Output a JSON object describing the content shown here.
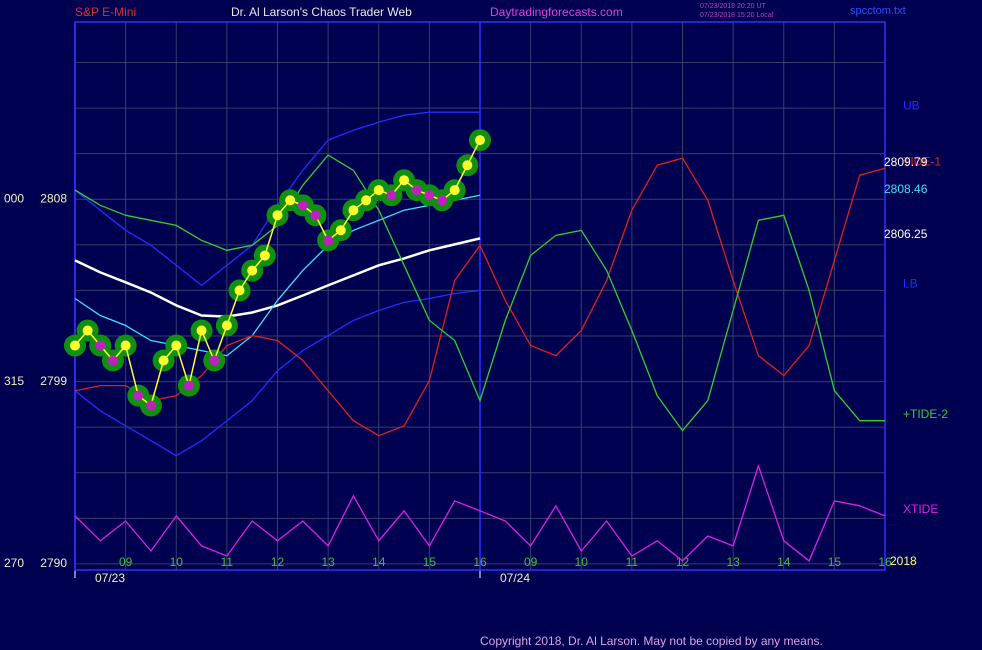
{
  "header": {
    "symbol": "S&P E-Mini",
    "title": "Dr. Al Larson's Chaos Trader Web",
    "site": "Daytradingforecasts.com",
    "stamp_ut": "07/23/2018 20:20 UT",
    "stamp_local": "07/23/2018 15:20 Local",
    "file": "spcctom.txt"
  },
  "footer": "Copyright 2018, Dr. Al Larson. May not be copied by any means.",
  "chart_data": {
    "type": "line",
    "ylim": [
      2789.7,
      2816.75
    ],
    "yticks": [
      2790,
      2799,
      2808
    ],
    "left_scale_labels": [
      "270",
      "315",
      "000"
    ],
    "ygrid": [
      2790,
      2792.25,
      2794.5,
      2796.75,
      2799,
      2801.25,
      2803.5,
      2805.75,
      2808,
      2810.25,
      2812.5,
      2814.75
    ],
    "xlim": [
      0,
      16
    ],
    "xticks": [
      {
        "value": 1,
        "label": "09"
      },
      {
        "value": 2,
        "label": "10"
      },
      {
        "value": 3,
        "label": "11"
      },
      {
        "value": 4,
        "label": "12"
      },
      {
        "value": 5,
        "label": "13"
      },
      {
        "value": 6,
        "label": "14"
      },
      {
        "value": 7,
        "label": "15"
      },
      {
        "value": 8,
        "label": "16"
      },
      {
        "value": 9,
        "label": "09"
      },
      {
        "value": 10,
        "label": "10"
      },
      {
        "value": 11,
        "label": "11"
      },
      {
        "value": 12,
        "label": "12"
      },
      {
        "value": 13,
        "label": "13"
      },
      {
        "value": 14,
        "label": "14"
      },
      {
        "value": 15,
        "label": "15"
      },
      {
        "value": 16,
        "label": "16"
      }
    ],
    "dates": [
      {
        "value": 0,
        "label": "07/23"
      },
      {
        "value": 8,
        "label": "07/24"
      }
    ],
    "year": "2018",
    "grid": true,
    "last_values": [
      {
        "value": 2809.79,
        "color": "#ffffff"
      },
      {
        "value": 2808.46,
        "color": "#40e0ff"
      },
      {
        "value": 2806.25,
        "color": "#ffffff"
      }
    ],
    "series": [
      {
        "name": "UB",
        "color": "#2030ff",
        "x": [
          0,
          0.5,
          1,
          1.5,
          2,
          2.5,
          3,
          3.5,
          4,
          4.5,
          5,
          5.5,
          6,
          6.5,
          7,
          7.5,
          8
        ],
        "values": [
          2808.45,
          2807.46,
          2806.47,
          2805.73,
          2804.74,
          2803.75,
          2804.74,
          2805.73,
          2807.7,
          2809.43,
          2810.92,
          2811.41,
          2811.81,
          2812.15,
          2812.3,
          2812.3,
          2812.3
        ]
      },
      {
        "name": "LB",
        "color": "#2030ff",
        "x": [
          0,
          0.5,
          1,
          1.5,
          2,
          2.5,
          3,
          3.5,
          4,
          4.5,
          5,
          5.5,
          6,
          6.5,
          7,
          7.5,
          8
        ],
        "values": [
          2798.55,
          2797.56,
          2796.82,
          2796.08,
          2795.34,
          2796.08,
          2797.07,
          2798.06,
          2799.54,
          2800.53,
          2801.27,
          2802.02,
          2802.51,
          2802.91,
          2803.1,
          2803.35,
          2803.5
        ]
      },
      {
        "color": "#ffffff",
        "x": [
          0,
          0.5,
          1,
          1.5,
          2,
          2.5,
          3,
          3.5,
          4,
          4.5,
          5,
          5.5,
          6,
          6.5,
          7,
          7.5,
          8
        ],
        "values": [
          2804.98,
          2804.39,
          2803.9,
          2803.4,
          2802.76,
          2802.26,
          2802.21,
          2802.41,
          2802.76,
          2803.25,
          2803.75,
          2804.24,
          2804.74,
          2805.08,
          2805.48,
          2805.77,
          2806.07
        ]
      },
      {
        "color": "#40e0ff",
        "x": [
          0,
          0.5,
          1,
          1.5,
          2,
          2.5,
          3,
          3.5,
          4,
          4.5,
          5,
          5.5,
          6,
          6.5,
          7,
          7.5,
          8
        ],
        "values": [
          2803.1,
          2802.26,
          2801.77,
          2801.03,
          2800.78,
          2800.53,
          2800.28,
          2801.27,
          2803.01,
          2804.49,
          2805.73,
          2806.47,
          2806.96,
          2807.46,
          2807.7,
          2807.95,
          2808.2
        ]
      },
      {
        "name": "TIDE-1",
        "color": "#e02020",
        "x": [
          0,
          0.5,
          1,
          1.5,
          2,
          2.5,
          3,
          3.5,
          4,
          4.5,
          5,
          5.5,
          6,
          6.5,
          7,
          7.5,
          8,
          8.5,
          9,
          9.5,
          10,
          10.5,
          11,
          11.5,
          12,
          12.5,
          13,
          13.5,
          14,
          14.5,
          15,
          15.5,
          16
        ],
        "values": [
          2798.55,
          2798.8,
          2798.8,
          2798.06,
          2798.31,
          2799.3,
          2800.78,
          2801.27,
          2801.03,
          2800.04,
          2798.55,
          2797.07,
          2796.33,
          2796.82,
          2799.05,
          2803.99,
          2805.73,
          2803.01,
          2800.78,
          2800.28,
          2801.52,
          2803.99,
          2807.46,
          2809.68,
          2810.03,
          2807.95,
          2803.99,
          2800.28,
          2799.3,
          2800.78,
          2804.98,
          2809.19,
          2809.53
        ]
      },
      {
        "name": "+TIDE-2",
        "color": "#30d030",
        "x": [
          0,
          0.5,
          1,
          1.5,
          2,
          2.5,
          3,
          3.5,
          4,
          4.5,
          5,
          5.5,
          6,
          6.5,
          7,
          7.5,
          8,
          8.5,
          9,
          9.5,
          10,
          10.5,
          11,
          11.5,
          12,
          12.5,
          13,
          13.5,
          14,
          14.5,
          15,
          15.5,
          16
        ],
        "values": [
          2808.45,
          2807.7,
          2807.21,
          2806.96,
          2806.71,
          2805.97,
          2805.48,
          2805.73,
          2806.71,
          2808.69,
          2810.18,
          2809.43,
          2807.46,
          2804.74,
          2802.02,
          2801.03,
          2798.06,
          2802.02,
          2805.23,
          2806.22,
          2806.47,
          2804.49,
          2801.52,
          2798.31,
          2796.58,
          2798.06,
          2802.51,
          2806.96,
          2807.21,
          2803.5,
          2798.55,
          2797.07,
          2797.07
        ]
      },
      {
        "name": "XTIDE",
        "color": "#e020e0",
        "x": [
          0,
          0.5,
          1,
          1.5,
          2,
          2.5,
          3,
          3.5,
          4,
          4.5,
          5,
          5.5,
          6,
          6.5,
          7,
          7.5,
          8,
          8.5,
          9,
          9.5,
          10,
          10.5,
          11,
          11.5,
          12,
          12.5,
          13,
          13.5,
          14,
          14.5,
          15,
          15.5,
          16
        ],
        "values": [
          2792.37,
          2791.14,
          2792.12,
          2790.64,
          2792.37,
          2790.89,
          2790.39,
          2792.12,
          2791.14,
          2792.12,
          2790.89,
          2793.36,
          2791.14,
          2792.62,
          2790.89,
          2793.11,
          2792.62,
          2792.12,
          2790.89,
          2792.87,
          2790.64,
          2792.12,
          2790.39,
          2791.14,
          2790.15,
          2791.38,
          2790.89,
          2794.84,
          2791.14,
          2790.15,
          2793.11,
          2792.87,
          2792.37
        ]
      },
      {
        "color": "#ffff30",
        "x": [
          0,
          0.25,
          0.5,
          0.75,
          1,
          1.25,
          1.5,
          1.75,
          2,
          2.25,
          2.5,
          2.75,
          3,
          3.25,
          3.5,
          3.75,
          4,
          4.25,
          4.5,
          4.75,
          5,
          5.25,
          5.5,
          5.75,
          6,
          6.25,
          6.5,
          6.75,
          7,
          7.25,
          7.5,
          7.75,
          8
        ],
        "values": [
          2800.78,
          2801.52,
          2800.78,
          2800.04,
          2800.78,
          2798.31,
          2797.82,
          2800.04,
          2800.78,
          2798.8,
          2801.52,
          2800.04,
          2801.77,
          2803.5,
          2804.48,
          2805.22,
          2807.21,
          2807.95,
          2807.7,
          2807.21,
          2805.97,
          2806.47,
          2807.46,
          2807.95,
          2808.45,
          2808.2,
          2808.94,
          2808.45,
          2808.2,
          2807.95,
          2808.45,
          2809.68,
          2810.92
        ]
      }
    ]
  }
}
